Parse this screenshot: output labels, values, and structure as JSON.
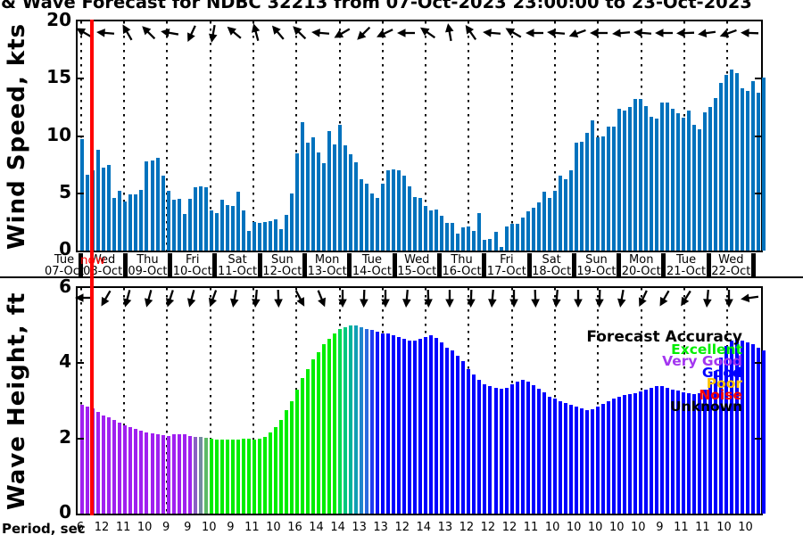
{
  "figure": {
    "title_visible": "& Wave Forecast for NDBC 32213 from 07-Oct-2023 23:00:00 to 23-Oct-2023"
  },
  "now_marker": {
    "label": "now",
    "color": "#ff0000"
  },
  "x_axis": {
    "day_labels": [
      {
        "dow": "Tue",
        "date": "07-Oct"
      },
      {
        "dow": "Wed",
        "date": "08-Oct"
      },
      {
        "dow": "Thu",
        "date": "09-Oct"
      },
      {
        "dow": "Fri",
        "date": "10-Oct"
      },
      {
        "dow": "Sat",
        "date": "11-Oct"
      },
      {
        "dow": "Sun",
        "date": "12-Oct"
      },
      {
        "dow": "Mon",
        "date": "13-Oct"
      },
      {
        "dow": "Tue",
        "date": "14-Oct"
      },
      {
        "dow": "Wed",
        "date": "15-Oct"
      },
      {
        "dow": "Thu",
        "date": "16-Oct"
      },
      {
        "dow": "Fri",
        "date": "17-Oct"
      },
      {
        "dow": "Sat",
        "date": "18-Oct"
      },
      {
        "dow": "Sun",
        "date": "19-Oct"
      },
      {
        "dow": "Mon",
        "date": "20-Oct"
      },
      {
        "dow": "Tue",
        "date": "21-Oct"
      },
      {
        "dow": "Wed",
        "date": "22-Oct"
      }
    ]
  },
  "legend": {
    "title": "Forecast Accuracy",
    "entries": [
      {
        "label": "Excellent",
        "color": "#00ee00"
      },
      {
        "label": "Very Good",
        "color": "#a335f0"
      },
      {
        "label": "Good",
        "color": "#0000ff"
      },
      {
        "label": "Poor",
        "color": "#fcc200"
      },
      {
        "label": "Noise",
        "color": "#ff0000"
      },
      {
        "label": "Unknown",
        "color": "#000000"
      }
    ]
  },
  "period_row": {
    "label": "Period, sec",
    "values": [
      6,
      12,
      11,
      10,
      9,
      9,
      10,
      9,
      11,
      10,
      16,
      14,
      14,
      13,
      13,
      12,
      14,
      13,
      12,
      12,
      12,
      11,
      10,
      10,
      10,
      10,
      10,
      9,
      11,
      11,
      10,
      10
    ]
  },
  "chart_data": [
    {
      "type": "bar",
      "name": "wind",
      "ylabel": "Wind Speed, kts",
      "ylim": [
        0,
        20
      ],
      "yticks": [
        0,
        5,
        10,
        15,
        20
      ],
      "bar_color": "#0072BD",
      "grid": "vertical-dotted-daily",
      "values": [
        9.7,
        6.6,
        7.0,
        8.8,
        7.2,
        7.5,
        4.6,
        5.2,
        4.3,
        4.9,
        4.9,
        5.3,
        7.8,
        7.9,
        8.1,
        6.5,
        5.2,
        4.4,
        4.5,
        3.2,
        4.5,
        5.5,
        5.6,
        5.5,
        3.5,
        3.3,
        4.4,
        4.0,
        3.9,
        5.1,
        3.5,
        1.7,
        2.5,
        2.4,
        2.5,
        2.6,
        2.7,
        1.9,
        3.1,
        5.0,
        8.5,
        11.2,
        9.4,
        9.9,
        8.6,
        7.6,
        10.4,
        9.3,
        11.0,
        9.2,
        8.4,
        7.7,
        6.2,
        5.8,
        5.0,
        4.6,
        5.8,
        7.0,
        7.1,
        7.0,
        6.5,
        5.6,
        4.7,
        4.6,
        3.9,
        3.5,
        3.6,
        3.0,
        2.4,
        2.4,
        1.5,
        2.0,
        2.1,
        1.7,
        3.3,
        0.9,
        1.0,
        1.6,
        0.3,
        2.1,
        2.3,
        2.3,
        2.9,
        3.4,
        3.7,
        4.2,
        5.1,
        4.6,
        5.2,
        6.5,
        6.2,
        7.0,
        9.4,
        9.5,
        10.3,
        11.4,
        9.9,
        10.0,
        10.8,
        10.8,
        12.4,
        12.2,
        12.5,
        13.2,
        13.2,
        12.6,
        11.7,
        11.5,
        12.9,
        12.9,
        12.4,
        12.0,
        11.6,
        12.2,
        11.0,
        10.6,
        12.1,
        12.5,
        13.3,
        14.6,
        15.3,
        15.8,
        15.5,
        14.2,
        13.9,
        14.8,
        13.8,
        15.1
      ],
      "direction_arrows_deg": [
        210,
        185,
        240,
        225,
        190,
        115,
        100,
        220,
        255,
        230,
        225,
        185,
        150,
        135,
        155,
        180,
        215,
        260,
        235,
        185,
        210,
        180,
        185,
        160,
        180,
        175,
        185,
        180,
        178,
        172,
        160,
        182
      ]
    },
    {
      "type": "bar",
      "name": "wave",
      "ylabel": "Wave Height, ft",
      "ylim": [
        0,
        6
      ],
      "yticks": [
        0,
        2,
        4,
        6
      ],
      "grid": "vertical-dotted-daily",
      "values": [
        2.9,
        2.85,
        2.8,
        2.7,
        2.62,
        2.55,
        2.48,
        2.42,
        2.35,
        2.3,
        2.25,
        2.2,
        2.17,
        2.14,
        2.1,
        2.08,
        2.06,
        2.1,
        2.12,
        2.1,
        2.07,
        2.05,
        2.05,
        2.02,
        2.0,
        1.98,
        1.97,
        1.96,
        1.96,
        1.97,
        2.0,
        2.0,
        1.97,
        2.0,
        2.05,
        2.15,
        2.3,
        2.5,
        2.75,
        3.0,
        3.3,
        3.6,
        3.85,
        4.1,
        4.3,
        4.5,
        4.65,
        4.8,
        4.9,
        4.95,
        5.0,
        5.0,
        4.95,
        4.9,
        4.88,
        4.85,
        4.8,
        4.78,
        4.75,
        4.7,
        4.65,
        4.6,
        4.6,
        4.65,
        4.7,
        4.75,
        4.68,
        4.55,
        4.4,
        4.35,
        4.2,
        4.05,
        3.85,
        3.7,
        3.55,
        3.45,
        3.4,
        3.35,
        3.32,
        3.35,
        3.45,
        3.52,
        3.55,
        3.5,
        3.42,
        3.32,
        3.22,
        3.1,
        3.05,
        3.0,
        2.95,
        2.9,
        2.85,
        2.8,
        2.75,
        2.78,
        2.85,
        2.92,
        3.0,
        3.05,
        3.1,
        3.15,
        3.18,
        3.2,
        3.25,
        3.3,
        3.35,
        3.38,
        3.38,
        3.35,
        3.3,
        3.28,
        3.22,
        3.2,
        3.18,
        3.2,
        3.3,
        3.5,
        3.8,
        4.15,
        4.45,
        4.6,
        4.65,
        4.6,
        4.55,
        4.5,
        4.4,
        4.35
      ],
      "color_segments": [
        {
          "count": 21,
          "color": "#a020f0"
        },
        {
          "count": 1,
          "color": "#8b5fc4"
        },
        {
          "count": 1,
          "color": "#748ca0"
        },
        {
          "count": 1,
          "color": "#5cba66"
        },
        {
          "count": 24,
          "color": "#00ee00"
        },
        {
          "count": 1,
          "color": "#00dc50"
        },
        {
          "count": 1,
          "color": "#00c87e"
        },
        {
          "count": 1,
          "color": "#00b49b"
        },
        {
          "count": 1,
          "color": "#0f9fb4"
        },
        {
          "count": 1,
          "color": "#1f86cc"
        },
        {
          "count": 1,
          "color": "#2a6be0"
        },
        {
          "count": 1,
          "color": "#1f3cf2"
        },
        {
          "count": 1,
          "color": "#0d14fc"
        },
        {
          "count": 72,
          "color": "#0000ff"
        }
      ],
      "direction_arrows_deg": [
        180,
        120,
        105,
        105,
        108,
        105,
        110,
        100,
        95,
        88,
        62,
        68,
        90,
        92,
        90,
        95,
        88,
        90,
        92,
        95,
        90,
        88,
        95,
        90,
        92,
        100,
        115,
        120,
        122,
        95,
        90,
        172
      ]
    }
  ]
}
